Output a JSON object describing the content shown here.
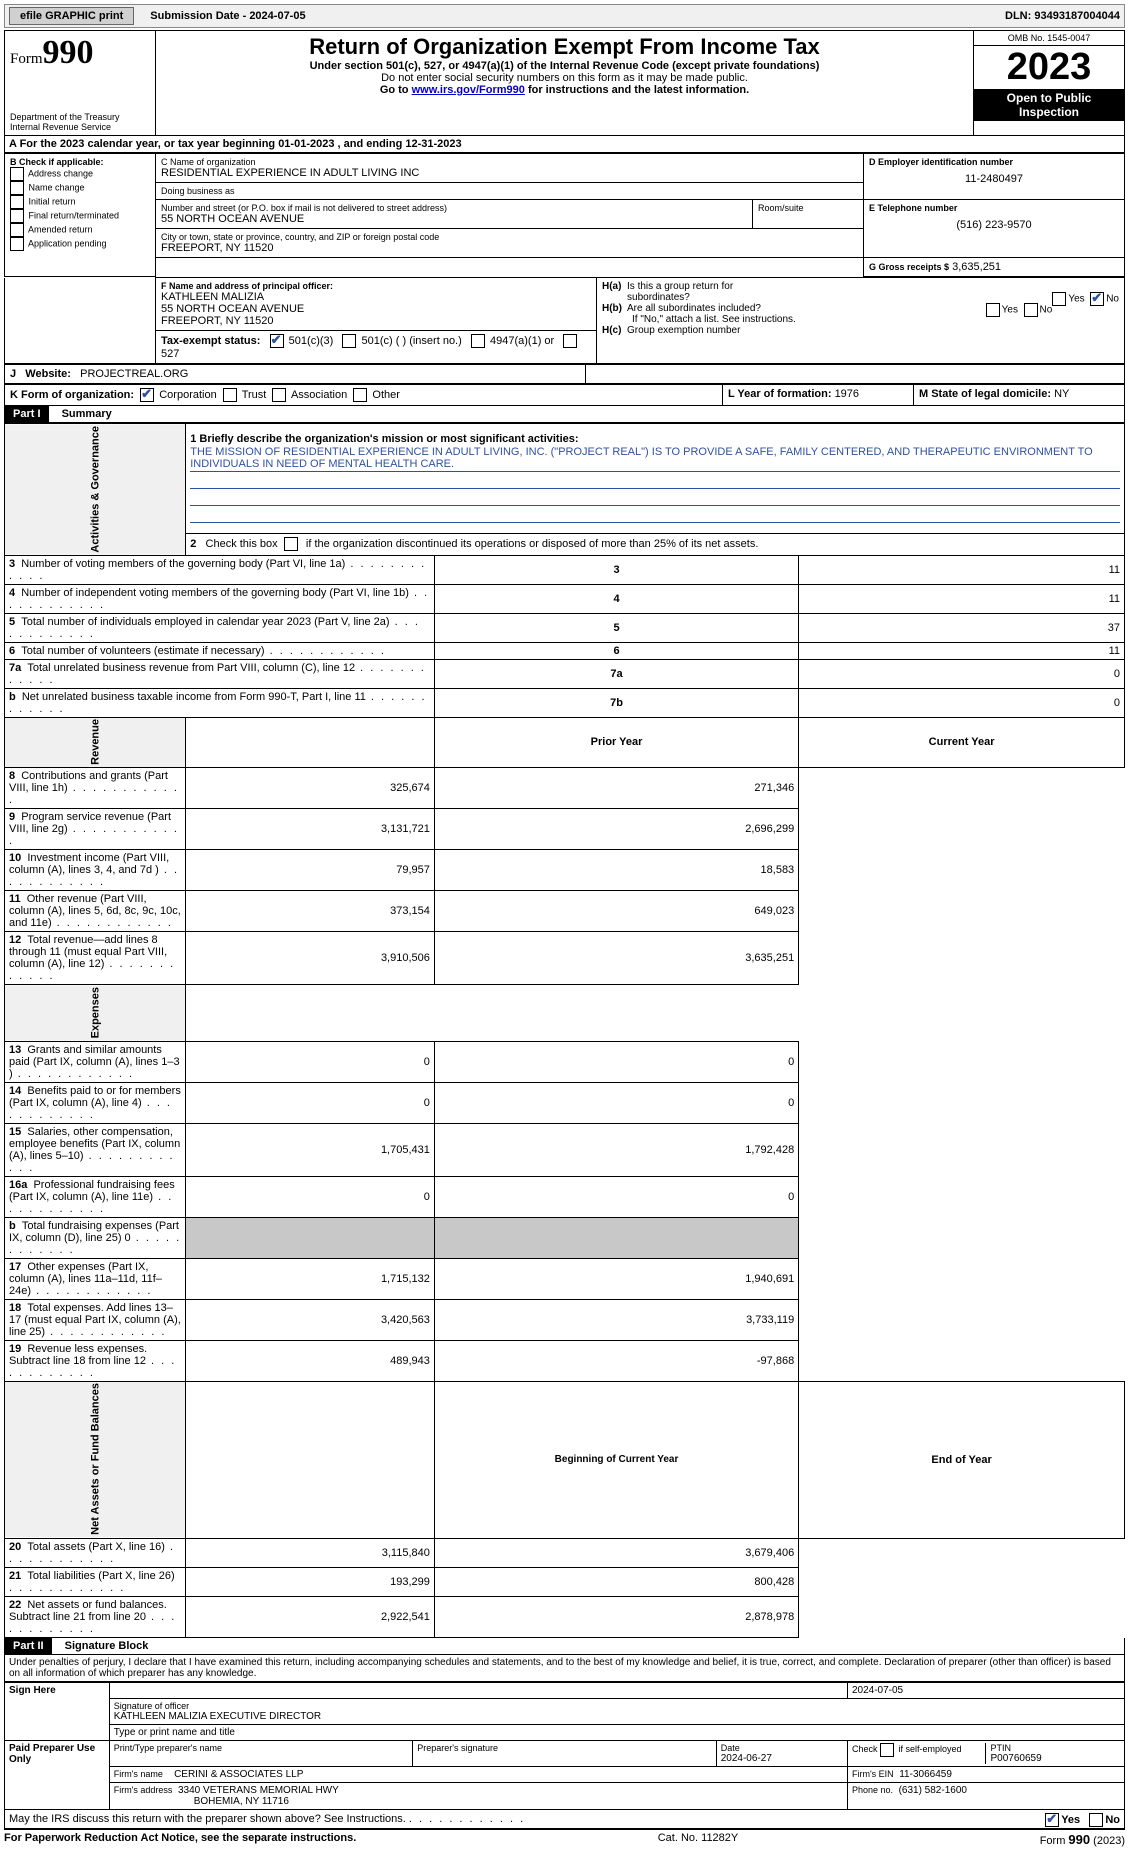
{
  "topbar": {
    "efile": "efile GRAPHIC print",
    "submission": "Submission Date - 2024-07-05",
    "dln": "DLN: 93493187004044"
  },
  "header": {
    "form_label": "Form",
    "form_number": "990",
    "title": "Return of Organization Exempt From Income Tax",
    "subtitle": "Under section 501(c), 527, or 4947(a)(1) of the Internal Revenue Code (except private foundations)",
    "note1": "Do not enter social security numbers on this form as it may be made public.",
    "note2_pre": "Go to ",
    "note2_link": "www.irs.gov/Form990",
    "note2_post": " for instructions and the latest information.",
    "dept": "Department of the Treasury\nInternal Revenue Service",
    "omb": "OMB No. 1545-0047",
    "year": "2023",
    "open": "Open to Public Inspection"
  },
  "section_a": {
    "line": "A   For the 2023 calendar year, or tax year beginning 01-01-2023    , and ending 12-31-2023"
  },
  "section_b": {
    "label": "B Check if applicable:",
    "opts": [
      "Address change",
      "Name change",
      "Initial return",
      "Final return/terminated",
      "Amended return",
      "Application pending"
    ]
  },
  "section_c": {
    "name_label": "C Name of organization",
    "name": "RESIDENTIAL EXPERIENCE IN ADULT LIVING INC",
    "dba_label": "Doing business as",
    "dba": "",
    "street_label": "Number and street (or P.O. box if mail is not delivered to street address)",
    "street": "55 NORTH OCEAN AVENUE",
    "room_label": "Room/suite",
    "room": "",
    "city_label": "City or town, state or province, country, and ZIP or foreign postal code",
    "city": "FREEPORT, NY  11520"
  },
  "section_d": {
    "label": "D Employer identification number",
    "value": "11-2480497"
  },
  "section_e": {
    "label": "E Telephone number",
    "value": "(516) 223-9570"
  },
  "section_g": {
    "label": "G Gross receipts $",
    "value": "3,635,251"
  },
  "section_f": {
    "label": "F  Name and address of principal officer:",
    "line1": "KATHLEEN MALIZIA",
    "line2": "55 NORTH OCEAN AVENUE",
    "line3": "FREEPORT, NY  11520"
  },
  "section_h": {
    "a": "H(a)  Is this a group return for subordinates?",
    "b": "H(b)  Are all subordinates included?",
    "b_note": "If \"No,\" attach a list. See instructions.",
    "c": "H(c)  Group exemption number"
  },
  "section_i": {
    "label": "Tax-exempt status:",
    "opts": [
      "501(c)(3)",
      "501(c) (  ) (insert no.)",
      "4947(a)(1) or",
      "527"
    ]
  },
  "section_j": {
    "label": "J",
    "label2": "Website:",
    "value": "PROJECTREAL.ORG"
  },
  "section_k": {
    "label": "K Form of organization:",
    "opts": [
      "Corporation",
      "Trust",
      "Association",
      "Other"
    ]
  },
  "section_l": {
    "label": "L Year of formation: ",
    "value": "1976"
  },
  "section_m": {
    "label": "M State of legal domicile: ",
    "value": "NY"
  },
  "part1": {
    "header_part": "Part I",
    "header_label": "Summary",
    "line1_label": "1   Briefly describe the organization's mission or most significant activities:",
    "mission": "THE MISSION OF RESIDENTIAL EXPERIENCE IN ADULT LIVING, INC. (\"PROJECT REAL\") IS TO PROVIDE A SAFE, FAMILY CENTERED, AND THERAPEUTIC ENVIRONMENT TO INDIVIDUALS IN NEED OF MENTAL HEALTH CARE.",
    "line2": "2    Check this box       if the organization discontinued its operations or disposed of more than 25% of its net assets.",
    "vside_gov": "Activities & Governance",
    "vside_rev": "Revenue",
    "vside_exp": "Expenses",
    "vside_net": "Net Assets or Fund Balances",
    "prior_year": "Prior Year",
    "current_year": "Current Year",
    "begin_year": "Beginning of Current Year",
    "end_year": "End of Year",
    "rows_gov": [
      {
        "n": "3",
        "t": "Number of voting members of the governing body (Part VI, line 1a)",
        "lbl": "3",
        "v": "11"
      },
      {
        "n": "4",
        "t": "Number of independent voting members of the governing body (Part VI, line 1b)",
        "lbl": "4",
        "v": "11"
      },
      {
        "n": "5",
        "t": "Total number of individuals employed in calendar year 2023 (Part V, line 2a)",
        "lbl": "5",
        "v": "37"
      },
      {
        "n": "6",
        "t": "Total number of volunteers (estimate if necessary)",
        "lbl": "6",
        "v": "11"
      },
      {
        "n": "7a",
        "t": "Total unrelated business revenue from Part VIII, column (C), line 12",
        "lbl": "7a",
        "v": "0"
      },
      {
        "n": "b",
        "t": "Net unrelated business taxable income from Form 990-T, Part I, line 11",
        "lbl": "7b",
        "v": "0"
      }
    ],
    "rows_rev": [
      {
        "n": "8",
        "t": "Contributions and grants (Part VIII, line 1h)",
        "p": "325,674",
        "c": "271,346"
      },
      {
        "n": "9",
        "t": "Program service revenue (Part VIII, line 2g)",
        "p": "3,131,721",
        "c": "2,696,299"
      },
      {
        "n": "10",
        "t": "Investment income (Part VIII, column (A), lines 3, 4, and 7d )",
        "p": "79,957",
        "c": "18,583"
      },
      {
        "n": "11",
        "t": "Other revenue (Part VIII, column (A), lines 5, 6d, 8c, 9c, 10c, and 11e)",
        "p": "373,154",
        "c": "649,023"
      },
      {
        "n": "12",
        "t": "Total revenue—add lines 8 through 11 (must equal Part VIII, column (A), line 12)",
        "p": "3,910,506",
        "c": "3,635,251"
      }
    ],
    "rows_exp": [
      {
        "n": "13",
        "t": "Grants and similar amounts paid (Part IX, column (A), lines 1–3 )",
        "p": "0",
        "c": "0"
      },
      {
        "n": "14",
        "t": "Benefits paid to or for members (Part IX, column (A), line 4)",
        "p": "0",
        "c": "0"
      },
      {
        "n": "15",
        "t": "Salaries, other compensation, employee benefits (Part IX, column (A), lines 5–10)",
        "p": "1,705,431",
        "c": "1,792,428"
      },
      {
        "n": "16a",
        "t": "Professional fundraising fees (Part IX, column (A), line 11e)",
        "p": "0",
        "c": "0"
      },
      {
        "n": "b",
        "t": "Total fundraising expenses (Part IX, column (D), line 25) 0",
        "p": "__SHADE__",
        "c": "__SHADE__"
      },
      {
        "n": "17",
        "t": "Other expenses (Part IX, column (A), lines 11a–11d, 11f–24e)",
        "p": "1,715,132",
        "c": "1,940,691"
      },
      {
        "n": "18",
        "t": "Total expenses. Add lines 13–17 (must equal Part IX, column (A), line 25)",
        "p": "3,420,563",
        "c": "3,733,119"
      },
      {
        "n": "19",
        "t": "Revenue less expenses. Subtract line 18 from line 12",
        "p": "489,943",
        "c": "-97,868"
      }
    ],
    "rows_net": [
      {
        "n": "20",
        "t": "Total assets (Part X, line 16)",
        "p": "3,115,840",
        "c": "3,679,406"
      },
      {
        "n": "21",
        "t": "Total liabilities (Part X, line 26)",
        "p": "193,299",
        "c": "800,428"
      },
      {
        "n": "22",
        "t": "Net assets or fund balances. Subtract line 21 from line 20",
        "p": "2,922,541",
        "c": "2,878,978"
      }
    ]
  },
  "part2": {
    "header_part": "Part II",
    "header_label": "Signature Block",
    "perjury": "Under penalties of perjury, I declare that I have examined this return, including accompanying schedules and statements, and to the best of my knowledge and belief, it is true, correct, and complete. Declaration of preparer (other than officer) is based on all information of which preparer has any knowledge.",
    "sign_here": "Sign Here",
    "sig_officer_label": "Signature of officer",
    "sig_date": "2024-07-05",
    "sig_name": "KATHLEEN MALIZIA  EXECUTIVE DIRECTOR",
    "sig_name_label": "Type or print name and title",
    "paid_preparer": "Paid Preparer Use Only",
    "prep_name_label": "Print/Type preparer's name",
    "prep_sig_label": "Preparer's signature",
    "prep_date_label": "Date",
    "prep_date": "2024-06-27",
    "prep_check_label": "Check         if self-employed",
    "ptin_label": "PTIN",
    "ptin": "P00760659",
    "firm_name_label": "Firm's name",
    "firm_name": "CERINI & ASSOCIATES LLP",
    "firm_ein_label": "Firm's EIN",
    "firm_ein": "11-3066459",
    "firm_addr_label": "Firm's address",
    "firm_addr1": "3340 VETERANS MEMORIAL HWY",
    "firm_addr2": "BOHEMIA, NY  11716",
    "phone_label": "Phone no.",
    "phone": "(631) 582-1600",
    "discuss": "May the IRS discuss this return with the preparer shown above? See Instructions.",
    "yes": "Yes",
    "no": "No"
  },
  "footer": {
    "paperwork": "For Paperwork Reduction Act Notice, see the separate instructions.",
    "cat": "Cat. No. 11282Y",
    "form": "Form 990 (2023)"
  }
}
